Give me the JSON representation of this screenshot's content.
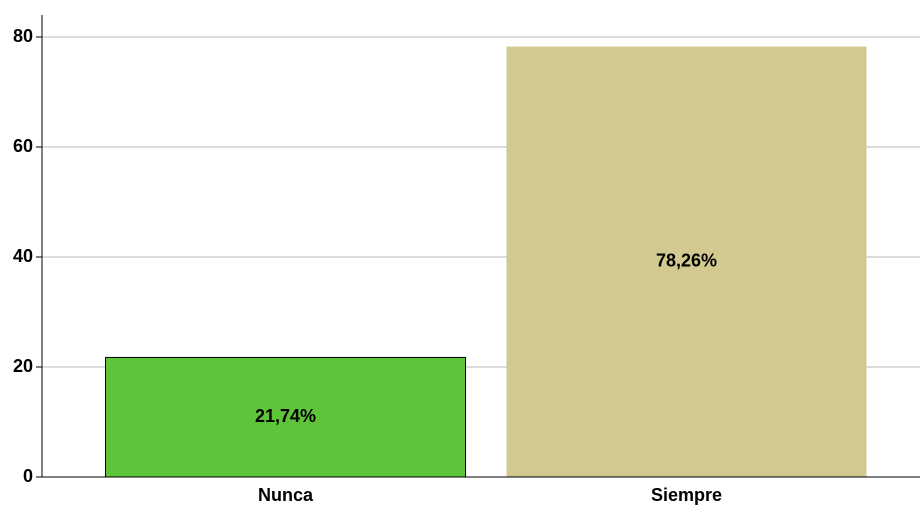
{
  "chart_data": {
    "type": "bar",
    "categories": [
      "Nunca",
      "Siempre"
    ],
    "values": [
      21.74,
      78.26
    ],
    "value_labels": [
      "21,74%",
      "78,26%"
    ],
    "colors": [
      "#5ec43a",
      "#d1c98f"
    ],
    "ylim": [
      0,
      84
    ],
    "yticks": [
      0,
      20,
      40,
      60,
      80
    ],
    "grid": true
  }
}
